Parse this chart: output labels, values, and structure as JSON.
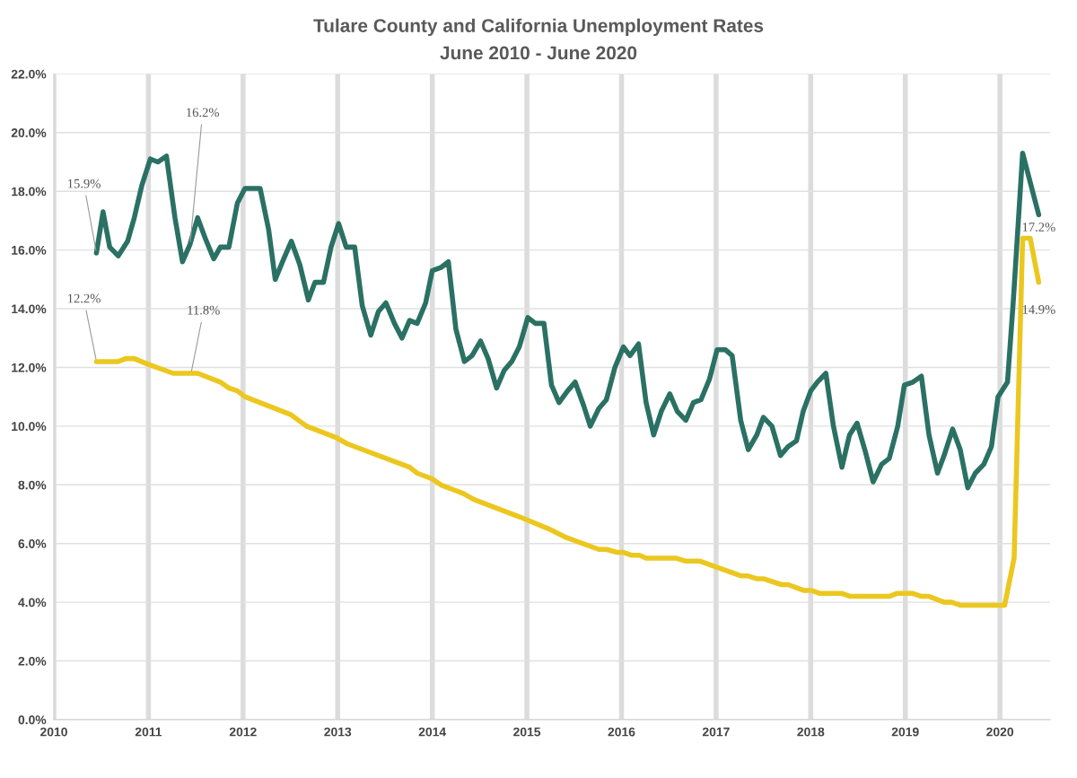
{
  "chart_data": {
    "type": "line",
    "title": "Tulare County and California Unemployment Rates",
    "subtitle": "June 2010 - June 2020",
    "xlim": [
      2010,
      2020.53
    ],
    "xticks": [
      2010,
      2011,
      2012,
      2013,
      2014,
      2015,
      2016,
      2017,
      2018,
      2019,
      2020
    ],
    "ylim": [
      0,
      22
    ],
    "yticks": [
      {
        "value": 0,
        "label": "0.0%"
      },
      {
        "value": 2,
        "label": "2.0%"
      },
      {
        "value": 4,
        "label": "4.0%"
      },
      {
        "value": 6,
        "label": "6.0%"
      },
      {
        "value": 8,
        "label": "8.0%"
      },
      {
        "value": 10,
        "label": "10.0%"
      },
      {
        "value": 12,
        "label": "12.0%"
      },
      {
        "value": 14,
        "label": "14.0%"
      },
      {
        "value": 16,
        "label": "16.0%"
      },
      {
        "value": 18,
        "label": "18.0%"
      },
      {
        "value": 20,
        "label": "20.0%"
      },
      {
        "value": 22,
        "label": "22.0%"
      }
    ],
    "grid": true,
    "marker": "none",
    "line_style": "solid",
    "series": [
      {
        "color": "#2a7164",
        "x": [
          2010.45,
          2010.52,
          2010.59,
          2010.68,
          2010.78,
          2010.85,
          2010.93,
          2011.02,
          2011.1,
          2011.19,
          2011.28,
          2011.36,
          2011.44,
          2011.52,
          2011.6,
          2011.69,
          2011.76,
          2011.85,
          2011.94,
          2012.02,
          2012.18,
          2012.27,
          2012.34,
          2012.43,
          2012.51,
          2012.6,
          2012.69,
          2012.76,
          2012.85,
          2012.93,
          2013.01,
          2013.09,
          2013.18,
          2013.26,
          2013.35,
          2013.43,
          2013.51,
          2013.6,
          2013.68,
          2013.76,
          2013.84,
          2013.93,
          2014.0,
          2014.09,
          2014.17,
          2014.25,
          2014.34,
          2014.42,
          2014.51,
          2014.59,
          2014.68,
          2014.76,
          2014.84,
          2014.92,
          2015.01,
          2015.09,
          2015.18,
          2015.26,
          2015.34,
          2015.43,
          2015.51,
          2015.6,
          2015.67,
          2015.76,
          2015.84,
          2015.93,
          2016.02,
          2016.09,
          2016.18,
          2016.26,
          2016.34,
          2016.42,
          2016.51,
          2016.59,
          2016.68,
          2016.76,
          2016.84,
          2016.93,
          2017.01,
          2017.1,
          2017.17,
          2017.26,
          2017.34,
          2017.43,
          2017.5,
          2017.59,
          2017.68,
          2017.76,
          2017.85,
          2017.92,
          2018.0,
          2018.07,
          2018.16,
          2018.24,
          2018.33,
          2018.41,
          2018.49,
          2018.58,
          2018.66,
          2018.75,
          2018.83,
          2018.92,
          2018.99,
          2019.08,
          2019.17,
          2019.25,
          2019.34,
          2019.41,
          2019.5,
          2019.58,
          2019.66,
          2019.74,
          2019.83,
          2019.91,
          2019.98,
          2020.08,
          2020.14,
          2020.24,
          2020.41
        ],
        "values": [
          15.9,
          17.3,
          16.1,
          15.8,
          16.3,
          17.1,
          18.2,
          19.1,
          19.0,
          19.2,
          17.1,
          15.6,
          16.2,
          17.1,
          16.4,
          15.7,
          16.1,
          16.1,
          17.6,
          18.1,
          18.1,
          16.7,
          15.0,
          15.7,
          16.3,
          15.5,
          14.3,
          14.9,
          14.9,
          16.1,
          16.9,
          16.1,
          16.1,
          14.1,
          13.1,
          13.9,
          14.2,
          13.5,
          13.0,
          13.6,
          13.5,
          14.2,
          15.3,
          15.4,
          15.6,
          13.3,
          12.2,
          12.4,
          12.9,
          12.3,
          11.3,
          11.9,
          12.2,
          12.7,
          13.7,
          13.5,
          13.5,
          11.4,
          10.8,
          11.2,
          11.5,
          10.7,
          10.0,
          10.6,
          10.9,
          12.0,
          12.7,
          12.4,
          12.8,
          10.8,
          9.7,
          10.5,
          11.1,
          10.5,
          10.2,
          10.8,
          10.9,
          11.6,
          12.6,
          12.6,
          12.4,
          10.2,
          9.2,
          9.7,
          10.3,
          10.0,
          9.0,
          9.3,
          9.5,
          10.5,
          11.2,
          11.5,
          11.8,
          10.0,
          8.6,
          9.7,
          10.1,
          9.1,
          8.1,
          8.7,
          8.9,
          10.0,
          11.4,
          11.5,
          11.7,
          9.7,
          8.4,
          9.0,
          9.9,
          9.2,
          7.9,
          8.4,
          8.7,
          9.3,
          11.0,
          11.5,
          14.2,
          19.3,
          17.2
        ]
      },
      {
        "color": "#ebc71f",
        "x": [
          2010.45,
          2010.68,
          2010.76,
          2010.85,
          2011.0,
          2011.26,
          2011.52,
          2011.76,
          2011.85,
          2011.94,
          2012.02,
          2012.5,
          2012.67,
          2012.99,
          2013.1,
          2013.76,
          2013.84,
          2014.0,
          2014.09,
          2014.33,
          2014.44,
          2014.93,
          2015.23,
          2015.42,
          2015.76,
          2015.84,
          2015.95,
          2016.02,
          2016.11,
          2016.19,
          2016.26,
          2016.58,
          2016.68,
          2016.83,
          2017.26,
          2017.33,
          2017.43,
          2017.5,
          2017.69,
          2017.76,
          2017.93,
          2018.01,
          2018.1,
          2018.33,
          2018.42,
          2018.83,
          2018.91,
          2019.08,
          2019.17,
          2019.25,
          2019.41,
          2019.49,
          2019.58,
          2020.05,
          2020.15,
          2020.24,
          2020.32,
          2020.41
        ],
        "values": [
          12.2,
          12.2,
          12.3,
          12.3,
          12.1,
          11.8,
          11.8,
          11.5,
          11.3,
          11.2,
          11.0,
          10.4,
          10.0,
          9.6,
          9.4,
          8.6,
          8.4,
          8.2,
          8.0,
          7.7,
          7.5,
          6.9,
          6.5,
          6.2,
          5.8,
          5.8,
          5.7,
          5.7,
          5.6,
          5.6,
          5.5,
          5.5,
          5.4,
          5.4,
          4.9,
          4.9,
          4.8,
          4.8,
          4.6,
          4.6,
          4.4,
          4.4,
          4.3,
          4.3,
          4.2,
          4.2,
          4.3,
          4.3,
          4.2,
          4.2,
          4.0,
          4.0,
          3.9,
          3.9,
          5.5,
          16.4,
          16.4,
          14.9
        ]
      }
    ],
    "annotations": [
      {
        "text": "15.9%",
        "x": 2010.45,
        "y": 15.9
      },
      {
        "text": "16.2%",
        "x": 2011.44,
        "y": 16.2
      },
      {
        "text": "12.2%",
        "x": 2010.45,
        "y": 12.2
      },
      {
        "text": "11.8%",
        "x": 2011.45,
        "y": 11.8
      },
      {
        "text": "17.2%",
        "x": 2020.41,
        "y": 17.2
      },
      {
        "text": "14.9%",
        "x": 2020.41,
        "y": 14.9
      }
    ]
  }
}
